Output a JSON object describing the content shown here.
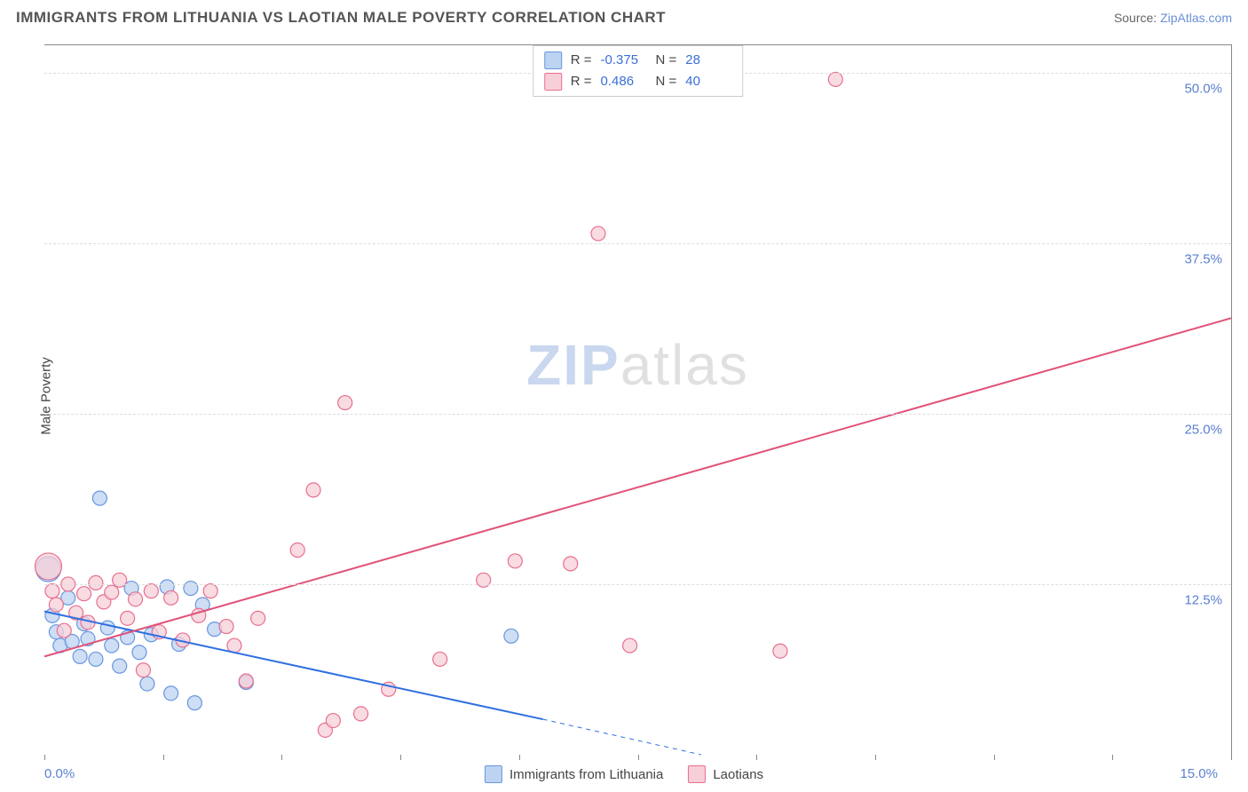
{
  "title": "IMMIGRANTS FROM LITHUANIA VS LAOTIAN MALE POVERTY CORRELATION CHART",
  "source_label": "Source:",
  "source_name": "ZipAtlas.com",
  "ylabel": "Male Poverty",
  "watermark_a": "ZIP",
  "watermark_b": "atlas",
  "chart": {
    "type": "scatter",
    "xlim": [
      0,
      15
    ],
    "ylim": [
      0,
      52
    ],
    "x_axis_labels": {
      "left": "0.0%",
      "right": "15.0%"
    },
    "y_ticks": [
      {
        "v": 12.5,
        "label": "12.5%"
      },
      {
        "v": 25.0,
        "label": "25.0%"
      },
      {
        "v": 37.5,
        "label": "37.5%"
      },
      {
        "v": 50.0,
        "label": "50.0%"
      }
    ],
    "x_tick_positions": [
      0,
      1.5,
      3.0,
      4.5,
      6.0,
      7.5,
      9.0,
      10.5,
      12.0,
      13.5,
      15.0
    ],
    "grid_color": "#dddddd",
    "axis_color": "#888888",
    "label_color": "#5a7fd0",
    "marker_radius": 8,
    "marker_stroke_width": 1.2,
    "line_width": 2,
    "series": [
      {
        "id": "lithuania",
        "name": "Immigrants from Lithuania",
        "fill": "#bcd3f2",
        "stroke": "#6a96df",
        "line_color": "#2f6fe0",
        "R": "-0.375",
        "N": "28",
        "trend": {
          "x1": 0.0,
          "y1": 10.5,
          "x2": 6.3,
          "y2": 2.6,
          "x2_dash": 8.3,
          "y2_dash": 0.0
        },
        "points": [
          {
            "x": 0.05,
            "y": 13.6,
            "r": 14
          },
          {
            "x": 0.1,
            "y": 10.2
          },
          {
            "x": 0.15,
            "y": 9.0
          },
          {
            "x": 0.2,
            "y": 8.0
          },
          {
            "x": 0.3,
            "y": 11.5
          },
          {
            "x": 0.35,
            "y": 8.3
          },
          {
            "x": 0.45,
            "y": 7.2
          },
          {
            "x": 0.5,
            "y": 9.6
          },
          {
            "x": 0.55,
            "y": 8.5
          },
          {
            "x": 0.65,
            "y": 7.0
          },
          {
            "x": 0.7,
            "y": 18.8
          },
          {
            "x": 0.8,
            "y": 9.3
          },
          {
            "x": 0.85,
            "y": 8.0
          },
          {
            "x": 0.95,
            "y": 6.5
          },
          {
            "x": 1.05,
            "y": 8.6
          },
          {
            "x": 1.1,
            "y": 12.2
          },
          {
            "x": 1.2,
            "y": 7.5
          },
          {
            "x": 1.3,
            "y": 5.2
          },
          {
            "x": 1.35,
            "y": 8.8
          },
          {
            "x": 1.55,
            "y": 12.3
          },
          {
            "x": 1.6,
            "y": 4.5
          },
          {
            "x": 1.7,
            "y": 8.1
          },
          {
            "x": 1.85,
            "y": 12.2
          },
          {
            "x": 1.9,
            "y": 3.8
          },
          {
            "x": 2.0,
            "y": 11.0
          },
          {
            "x": 2.15,
            "y": 9.2
          },
          {
            "x": 2.55,
            "y": 5.3
          },
          {
            "x": 5.9,
            "y": 8.7
          }
        ]
      },
      {
        "id": "laotians",
        "name": "Laotians",
        "fill": "#f7cfd8",
        "stroke": "#e86f8e",
        "line_color": "#e15278",
        "R": "0.486",
        "N": "40",
        "trend": {
          "x1": 0.0,
          "y1": 7.2,
          "x2": 15.0,
          "y2": 32.0
        },
        "points": [
          {
            "x": 0.05,
            "y": 13.8,
            "r": 15
          },
          {
            "x": 0.1,
            "y": 12.0
          },
          {
            "x": 0.15,
            "y": 11.0
          },
          {
            "x": 0.25,
            "y": 9.1
          },
          {
            "x": 0.3,
            "y": 12.5
          },
          {
            "x": 0.4,
            "y": 10.4
          },
          {
            "x": 0.5,
            "y": 11.8
          },
          {
            "x": 0.55,
            "y": 9.7
          },
          {
            "x": 0.65,
            "y": 12.6
          },
          {
            "x": 0.75,
            "y": 11.2
          },
          {
            "x": 0.85,
            "y": 11.9
          },
          {
            "x": 0.95,
            "y": 12.8
          },
          {
            "x": 1.05,
            "y": 10.0
          },
          {
            "x": 1.15,
            "y": 11.4
          },
          {
            "x": 1.25,
            "y": 6.2
          },
          {
            "x": 1.35,
            "y": 12.0
          },
          {
            "x": 1.45,
            "y": 9.0
          },
          {
            "x": 1.6,
            "y": 11.5
          },
          {
            "x": 1.75,
            "y": 8.4
          },
          {
            "x": 1.95,
            "y": 10.2
          },
          {
            "x": 2.1,
            "y": 12.0
          },
          {
            "x": 2.3,
            "y": 9.4
          },
          {
            "x": 2.4,
            "y": 8.0
          },
          {
            "x": 2.55,
            "y": 5.4
          },
          {
            "x": 2.7,
            "y": 10.0
          },
          {
            "x": 3.2,
            "y": 15.0
          },
          {
            "x": 3.4,
            "y": 19.4
          },
          {
            "x": 3.55,
            "y": 1.8
          },
          {
            "x": 3.65,
            "y": 2.5
          },
          {
            "x": 3.8,
            "y": 25.8
          },
          {
            "x": 4.0,
            "y": 3.0
          },
          {
            "x": 4.35,
            "y": 4.8
          },
          {
            "x": 5.0,
            "y": 7.0
          },
          {
            "x": 5.55,
            "y": 12.8
          },
          {
            "x": 5.95,
            "y": 14.2
          },
          {
            "x": 6.65,
            "y": 14.0
          },
          {
            "x": 7.0,
            "y": 38.2
          },
          {
            "x": 7.4,
            "y": 8.0
          },
          {
            "x": 9.3,
            "y": 7.6
          },
          {
            "x": 10.0,
            "y": 49.5
          }
        ]
      }
    ]
  }
}
